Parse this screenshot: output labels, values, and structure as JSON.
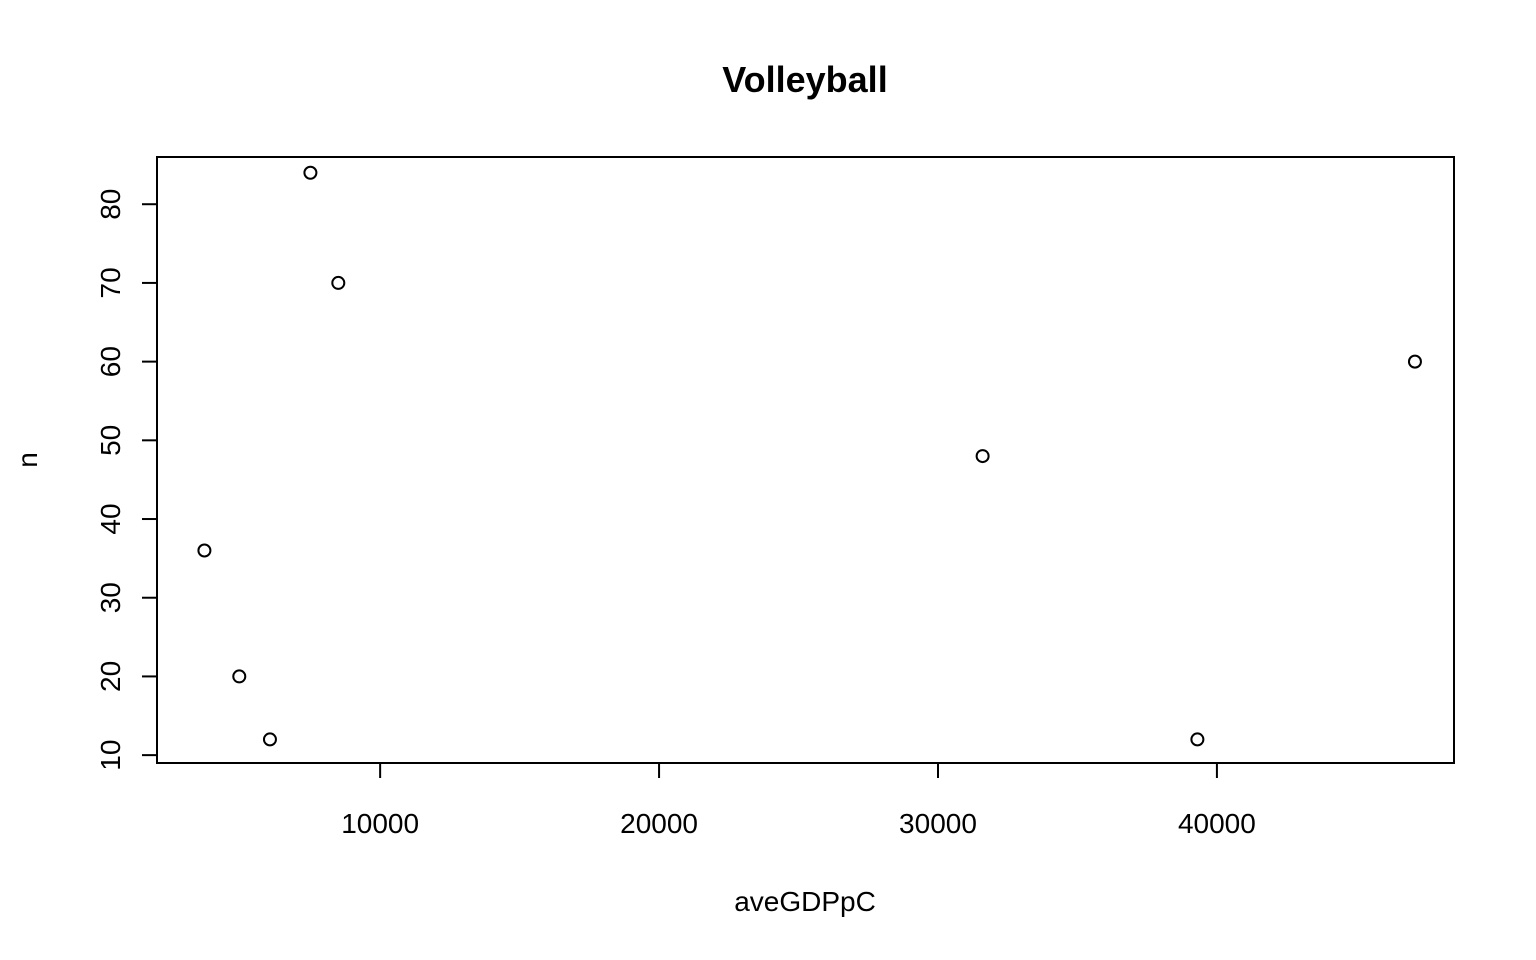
{
  "chart_data": {
    "type": "scatter",
    "title": "Volleyball",
    "xlabel": "aveGDPpC",
    "ylabel": "n",
    "xlim": [
      2000,
      48500
    ],
    "ylim": [
      9,
      86
    ],
    "xticks": [
      10000,
      20000,
      30000,
      40000
    ],
    "yticks": [
      10,
      20,
      30,
      40,
      50,
      60,
      70,
      80
    ],
    "grid": false,
    "legend": "none",
    "point_style": "open-circle",
    "points": [
      {
        "x": 7500,
        "y": 84
      },
      {
        "x": 8500,
        "y": 70
      },
      {
        "x": 3700,
        "y": 36
      },
      {
        "x": 4950,
        "y": 20
      },
      {
        "x": 6050,
        "y": 12
      },
      {
        "x": 31600,
        "y": 48
      },
      {
        "x": 39300,
        "y": 12
      },
      {
        "x": 47100,
        "y": 60
      }
    ]
  }
}
